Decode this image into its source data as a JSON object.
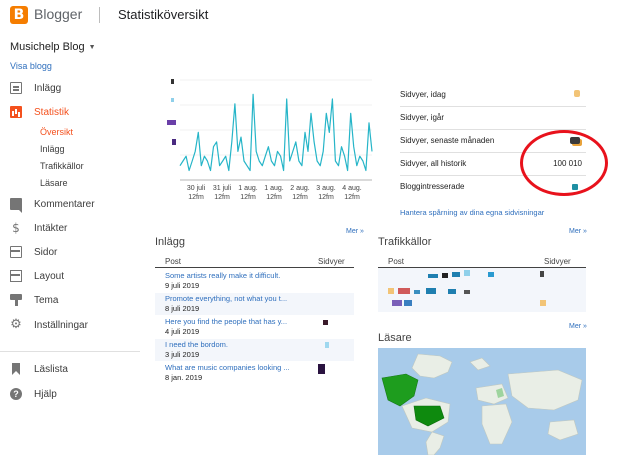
{
  "header": {
    "brand": "Blogger",
    "title": "Statistiköversikt"
  },
  "sidebar": {
    "blog_name": "Musichelp Blog",
    "view_blog": "Visa blogg",
    "items": [
      {
        "label": "Inlägg",
        "icon": "posts-icon"
      },
      {
        "label": "Statistik",
        "icon": "stats-icon",
        "active": true
      },
      {
        "label": "Kommentarer",
        "icon": "comment-icon"
      },
      {
        "label": "Intäkter",
        "icon": "dollar-icon"
      },
      {
        "label": "Sidor",
        "icon": "pages-icon"
      },
      {
        "label": "Layout",
        "icon": "layout-icon"
      },
      {
        "label": "Tema",
        "icon": "theme-icon"
      },
      {
        "label": "Inställningar",
        "icon": "gear-icon"
      },
      {
        "label": "Läslista",
        "icon": "bookmark-icon"
      },
      {
        "label": "Hjälp",
        "icon": "help-icon"
      }
    ],
    "stats_subitems": [
      {
        "label": "Översikt",
        "active": true
      },
      {
        "label": "Inlägg"
      },
      {
        "label": "Trafikkällor"
      },
      {
        "label": "Läsare"
      }
    ]
  },
  "chart_data": {
    "type": "line",
    "x_tick_labels": [
      [
        "30 juli",
        "12fm"
      ],
      [
        "31 juli",
        "12fm"
      ],
      [
        "1 aug.",
        "12fm"
      ],
      [
        "1 aug.",
        "12fm"
      ],
      [
        "2 aug.",
        "12fm"
      ],
      [
        "3 aug.",
        "12fm"
      ],
      [
        "4 aug.",
        "12fm"
      ]
    ],
    "series": [
      {
        "values": [
          6,
          8,
          10,
          4,
          8,
          12,
          20,
          6,
          10,
          8,
          4,
          14,
          16,
          6,
          8,
          10,
          4,
          16,
          32,
          12,
          18,
          8,
          6,
          4,
          36,
          12,
          8,
          6,
          10,
          14,
          8,
          6,
          12,
          10,
          4,
          34,
          8,
          12,
          16,
          8,
          6,
          20,
          12,
          28,
          16,
          8,
          6,
          12,
          28,
          20,
          34,
          8,
          6,
          14,
          10,
          4,
          28,
          14,
          6,
          10,
          8,
          4,
          24,
          12
        ]
      }
    ],
    "ylim": [
      0,
      42
    ],
    "color": "#26b5c8",
    "grid": true
  },
  "stats": {
    "rows": [
      {
        "label": "Sidvyer, idag",
        "value": ""
      },
      {
        "label": "Sidvyer, igår",
        "value": ""
      },
      {
        "label": "Sidvyer, senaste månaden",
        "value": ""
      },
      {
        "label": "Sidvyer, all historik",
        "value": "100 010"
      },
      {
        "label": "Bloggintresserade",
        "value": ""
      }
    ],
    "manage_link": "Hantera spårning av dina egna sidvisningar",
    "more": "Mer »"
  },
  "posts": {
    "title": "Inlägg",
    "col_post": "Post",
    "col_views": "Sidvyer",
    "more": "Mer »",
    "rows": [
      {
        "title": "Some artists really make it difficult.",
        "date": "9 juli 2019"
      },
      {
        "title": "Promote everything, not what you t...",
        "date": "8 juli 2019"
      },
      {
        "title": "Here you find the people that has y...",
        "date": "4 juli 2019"
      },
      {
        "title": "I need the bordom.",
        "date": "3 juli 2019"
      },
      {
        "title": "What are music companies looking ...",
        "date": "8 jan. 2019"
      }
    ]
  },
  "traffic": {
    "title": "Trafikkällor",
    "col_post": "Post",
    "col_views": "Sidvyer",
    "more": "Mer »"
  },
  "readers": {
    "title": "Läsare"
  },
  "colors": {
    "accent": "#f4511e",
    "link": "#2f6fbd",
    "chart_line": "#26b5c8",
    "annotation": "#e8121c",
    "map_highlight": "#1e9d1e"
  }
}
